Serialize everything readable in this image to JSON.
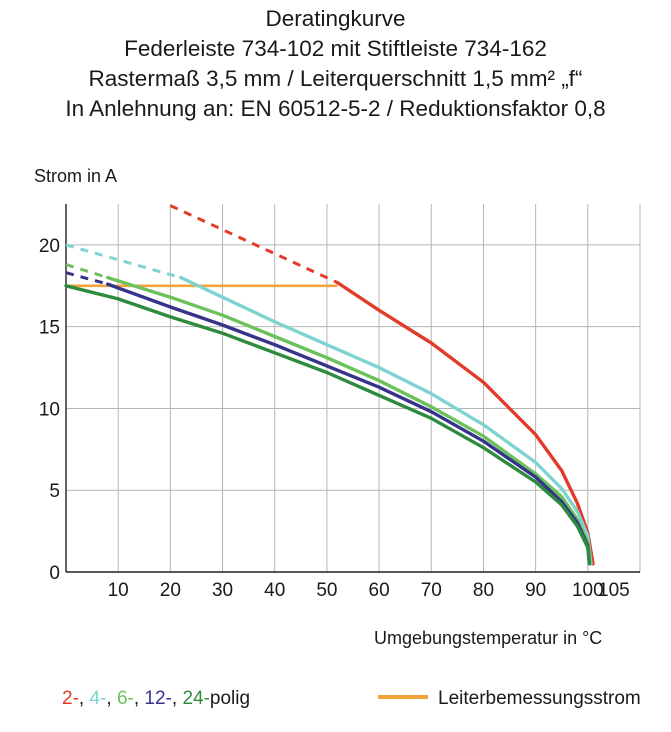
{
  "title_lines": [
    "Deratingkurve",
    "Federleiste 734-102 mit Stiftleiste 734-162",
    "Rastermaß 3,5 mm / Leiterquerschnitt 1,5 mm² „f“",
    "In Anlehnung an: EN 60512-5-2 / Reduktionsfaktor 0,8"
  ],
  "legend": {
    "poles": [
      {
        "text": "2-",
        "color": "#e23b2a"
      },
      {
        "text": "4-",
        "color": "#7fd3d0"
      },
      {
        "text": "6-",
        "color": "#6cc25a"
      },
      {
        "text": "12-",
        "color": "#35338a"
      },
      {
        "text": "24-",
        "color": "#2e8b3e"
      }
    ],
    "poles_suffix": "polig",
    "rated_current_label": "Leiterbemessungsstrom",
    "rated_current_color": "#f2a33a"
  },
  "chart_data": {
    "type": "line",
    "ylabel": "Strom in A",
    "xlabel": "Umgebungstemperatur in °C",
    "xlim": [
      0,
      110
    ],
    "ylim": [
      0,
      22.5
    ],
    "x_ticks": [
      10,
      20,
      30,
      40,
      50,
      60,
      70,
      80,
      90,
      100,
      105
    ],
    "y_ticks": [
      0,
      5,
      10,
      15,
      20
    ],
    "grid": true,
    "rated_current": {
      "value": 17.5,
      "x_end": 52,
      "color": "#f2a33a"
    },
    "series": [
      {
        "name": "2-polig",
        "color": "#e23b2a",
        "dashed": [
          [
            20,
            22.4
          ],
          [
            52,
            17.7
          ]
        ],
        "values": [
          [
            52,
            17.7
          ],
          [
            60,
            16.0
          ],
          [
            70,
            14.0
          ],
          [
            80,
            11.6
          ],
          [
            90,
            8.4
          ],
          [
            95,
            6.2
          ],
          [
            98,
            4.2
          ],
          [
            100,
            2.4
          ],
          [
            101,
            0.5
          ]
        ]
      },
      {
        "name": "4-polig",
        "color": "#7fd3d0",
        "dashed": [
          [
            0,
            20.0
          ],
          [
            22,
            18.0
          ]
        ],
        "values": [
          [
            22,
            18.0
          ],
          [
            30,
            16.8
          ],
          [
            40,
            15.3
          ],
          [
            50,
            13.9
          ],
          [
            60,
            12.5
          ],
          [
            70,
            10.9
          ],
          [
            80,
            9.0
          ],
          [
            90,
            6.7
          ],
          [
            95,
            5.1
          ],
          [
            98,
            3.7
          ],
          [
            100,
            2.2
          ],
          [
            100.6,
            0.5
          ]
        ]
      },
      {
        "name": "6-polig",
        "color": "#6cc25a",
        "dashed": [
          [
            0,
            18.8
          ],
          [
            8,
            18.0
          ]
        ],
        "values": [
          [
            8,
            18.0
          ],
          [
            20,
            16.8
          ],
          [
            30,
            15.7
          ],
          [
            40,
            14.4
          ],
          [
            50,
            13.1
          ],
          [
            60,
            11.7
          ],
          [
            70,
            10.1
          ],
          [
            80,
            8.3
          ],
          [
            90,
            6.0
          ],
          [
            95,
            4.6
          ],
          [
            98,
            3.2
          ],
          [
            100,
            1.8
          ],
          [
            100.4,
            0.5
          ]
        ]
      },
      {
        "name": "12-polig",
        "color": "#35338a",
        "dashed": [
          [
            0,
            18.3
          ],
          [
            8,
            17.6
          ]
        ],
        "values": [
          [
            8,
            17.6
          ],
          [
            20,
            16.2
          ],
          [
            30,
            15.1
          ],
          [
            40,
            13.9
          ],
          [
            50,
            12.6
          ],
          [
            60,
            11.3
          ],
          [
            70,
            9.8
          ],
          [
            80,
            8.0
          ],
          [
            90,
            5.8
          ],
          [
            95,
            4.3
          ],
          [
            98,
            3.0
          ],
          [
            100,
            1.6
          ],
          [
            100.3,
            0.5
          ]
        ]
      },
      {
        "name": "24-polig",
        "color": "#2e8b3e",
        "dashed": [],
        "values": [
          [
            0,
            17.5
          ],
          [
            10,
            16.7
          ],
          [
            20,
            15.6
          ],
          [
            30,
            14.6
          ],
          [
            40,
            13.4
          ],
          [
            50,
            12.2
          ],
          [
            60,
            10.8
          ],
          [
            70,
            9.4
          ],
          [
            80,
            7.6
          ],
          [
            90,
            5.5
          ],
          [
            95,
            4.1
          ],
          [
            98,
            2.8
          ],
          [
            100,
            1.5
          ],
          [
            100.3,
            0.5
          ]
        ]
      }
    ]
  }
}
